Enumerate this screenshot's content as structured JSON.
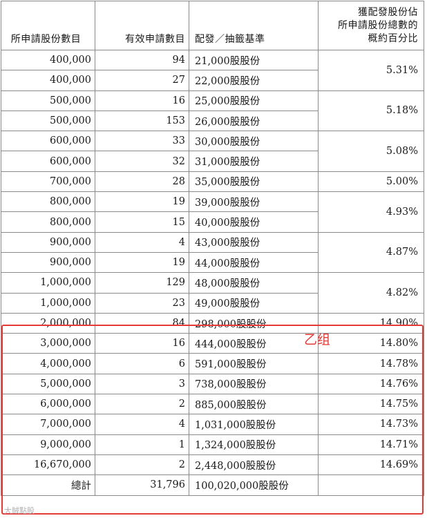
{
  "header": {
    "col1": "所申請股份數目",
    "col2": "有效申請數目",
    "col3": "配發／抽籤基準",
    "col4_lines": [
      "獲配發股份佔",
      "所申請股份總數的",
      "概約百分比"
    ]
  },
  "rows": [
    {
      "shares": "400,000",
      "apps": "94",
      "alloc": "21,000股股份"
    },
    {
      "shares": "400,000",
      "apps": "27",
      "alloc": "22,000股股份"
    },
    {
      "shares": "500,000",
      "apps": "16",
      "alloc": "25,000股股份"
    },
    {
      "shares": "500,000",
      "apps": "153",
      "alloc": "26,000股股份"
    },
    {
      "shares": "600,000",
      "apps": "33",
      "alloc": "30,000股股份"
    },
    {
      "shares": "600,000",
      "apps": "32",
      "alloc": "31,000股股份"
    },
    {
      "shares": "700,000",
      "apps": "28",
      "alloc": "35,000股股份"
    },
    {
      "shares": "800,000",
      "apps": "19",
      "alloc": "39,000股股份"
    },
    {
      "shares": "800,000",
      "apps": "15",
      "alloc": "40,000股股份"
    },
    {
      "shares": "900,000",
      "apps": "4",
      "alloc": "43,000股股份"
    },
    {
      "shares": "900,000",
      "apps": "19",
      "alloc": "44,000股股份"
    },
    {
      "shares": "1,000,000",
      "apps": "129",
      "alloc": "48,000股股份"
    },
    {
      "shares": "1,000,000",
      "apps": "23",
      "alloc": "49,000股股份"
    },
    {
      "shares": "2,000,000",
      "apps": "84",
      "alloc": "298,000股股份"
    },
    {
      "shares": "3,000,000",
      "apps": "16",
      "alloc": "444,000股股份"
    },
    {
      "shares": "4,000,000",
      "apps": "6",
      "alloc": "591,000股股份"
    },
    {
      "shares": "5,000,000",
      "apps": "3",
      "alloc": "738,000股股份"
    },
    {
      "shares": "6,000,000",
      "apps": "2",
      "alloc": "885,000股股份"
    },
    {
      "shares": "7,000,000",
      "apps": "4",
      "alloc": "1,031,000股股份"
    },
    {
      "shares": "9,000,000",
      "apps": "1",
      "alloc": "1,324,000股股份"
    },
    {
      "shares": "16,670,000",
      "apps": "2",
      "alloc": "2,448,000股股份"
    }
  ],
  "percent_groups": [
    {
      "start": 0,
      "span": 2,
      "value": "5.31%"
    },
    {
      "start": 2,
      "span": 2,
      "value": "5.18%"
    },
    {
      "start": 4,
      "span": 2,
      "value": "5.08%"
    },
    {
      "start": 6,
      "span": 1,
      "value": "5.00%"
    },
    {
      "start": 7,
      "span": 2,
      "value": "4.93%"
    },
    {
      "start": 9,
      "span": 2,
      "value": "4.87%"
    },
    {
      "start": 11,
      "span": 2,
      "value": "4.82%"
    },
    {
      "start": 13,
      "span": 1,
      "value": "14.90%"
    },
    {
      "start": 14,
      "span": 1,
      "value": "14.80%"
    },
    {
      "start": 15,
      "span": 1,
      "value": "14.78%"
    },
    {
      "start": 16,
      "span": 1,
      "value": "14.76%"
    },
    {
      "start": 17,
      "span": 1,
      "value": "14.75%"
    },
    {
      "start": 18,
      "span": 1,
      "value": "14.73%"
    },
    {
      "start": 19,
      "span": 1,
      "value": "14.71%"
    },
    {
      "start": 20,
      "span": 1,
      "value": "14.69%"
    }
  ],
  "total": {
    "label": "總計",
    "apps": "31,796",
    "alloc": "100,020,000股股份"
  },
  "annotation": {
    "group_label": "乙组",
    "highlight_color": "#e53935"
  },
  "watermark": "大賊點股"
}
